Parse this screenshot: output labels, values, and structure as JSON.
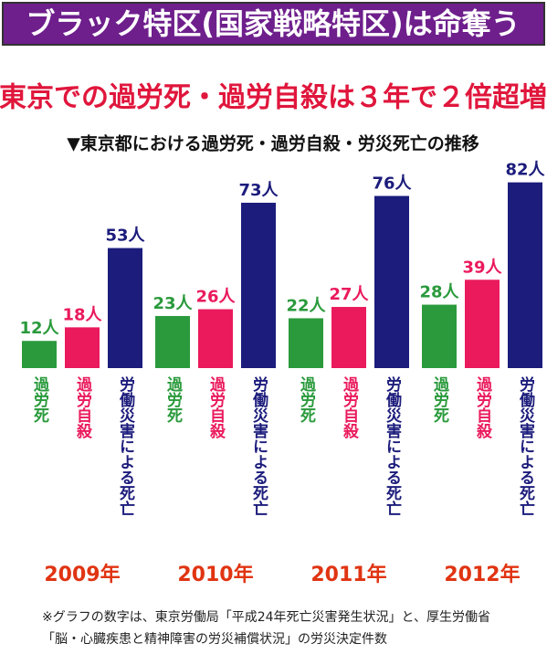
{
  "chart_data": {
    "type": "bar",
    "title": "ブラック特区(国家戦略特区)は命奪う",
    "subtitle": "東京での過労死・過労自殺は３年で２倍超増",
    "heading": "▼東京都における過労死・過労自殺・労災死亡の推移",
    "categories": [
      "2009年",
      "2010年",
      "2011年",
      "2012年"
    ],
    "series": [
      {
        "name": "過労死",
        "color": "#2a9a3c",
        "values": [
          12,
          23,
          22,
          28
        ],
        "value_labels": [
          "12人",
          "23人",
          "22人",
          "28人"
        ]
      },
      {
        "name": "過労自殺",
        "color": "#ea1a5c",
        "values": [
          18,
          26,
          27,
          39
        ],
        "value_labels": [
          "18人",
          "26人",
          "27人",
          "39人"
        ]
      },
      {
        "name": "労働災害による死亡",
        "color": "#1c1c7c",
        "values": [
          53,
          73,
          76,
          82
        ],
        "value_labels": [
          "53人",
          "73人",
          "76人",
          "82人"
        ]
      }
    ],
    "footnote": "※グラフの数字は、東京労働局「平成24年死亡災害発生状況」と、厚生労働省「脳・心臓疾患と精神障害の労災補償状況」の労災決定件数"
  }
}
